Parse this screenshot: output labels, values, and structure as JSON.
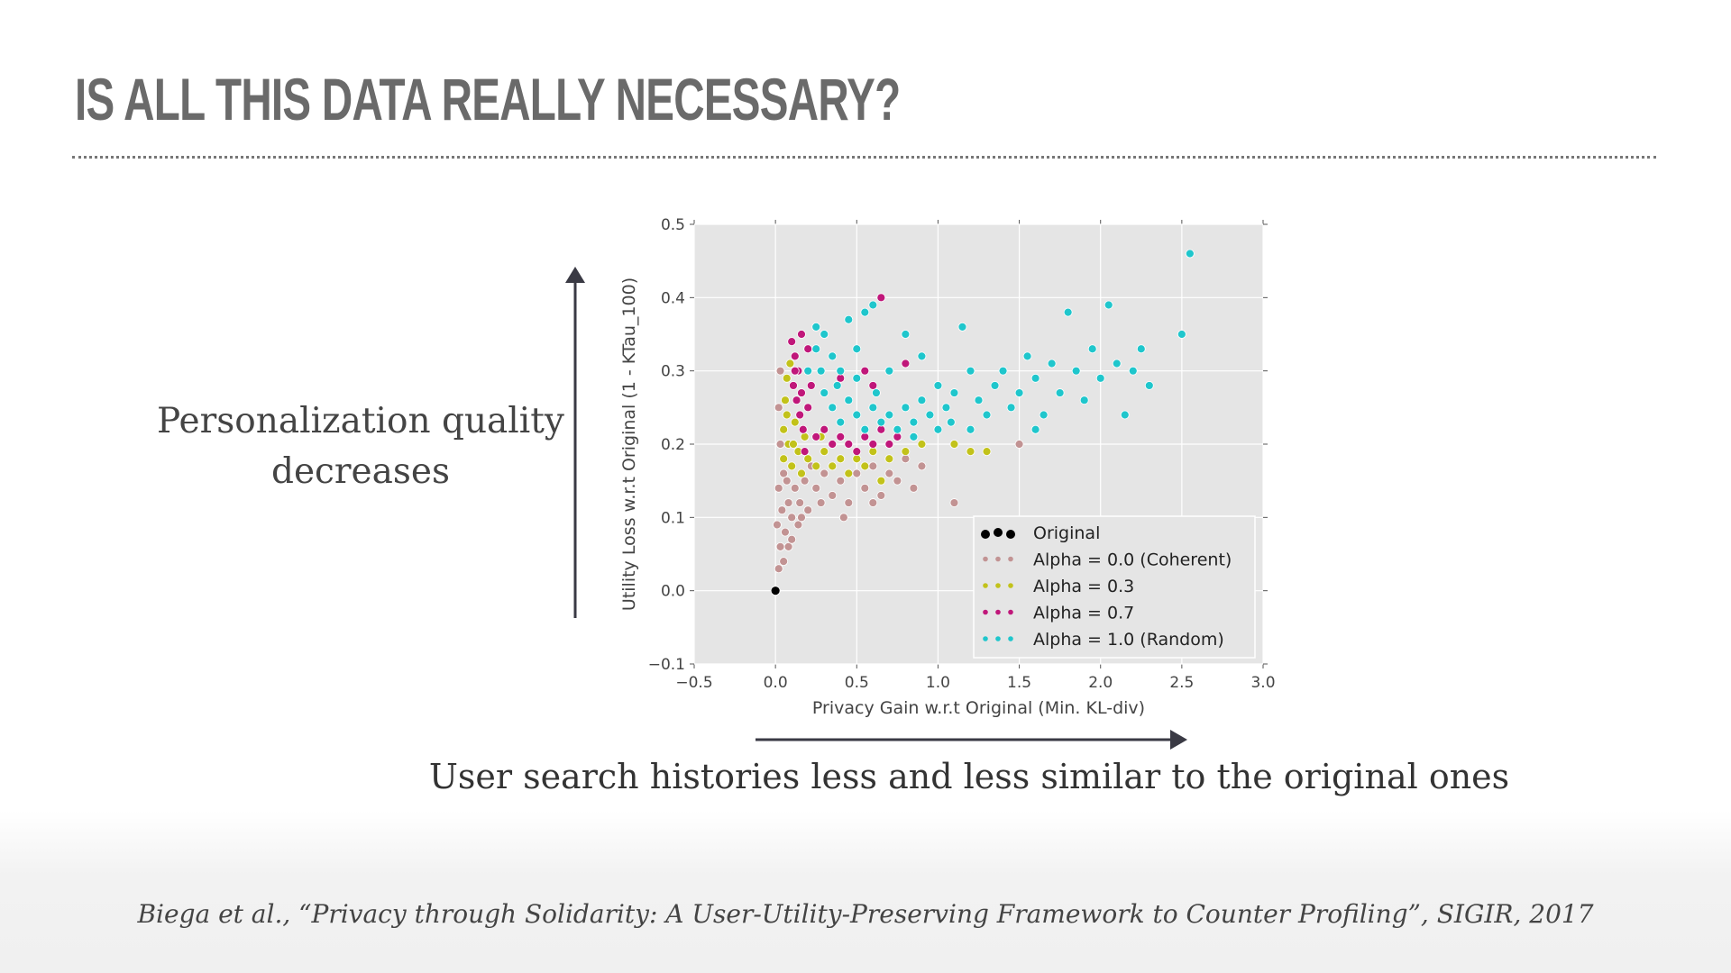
{
  "slide": {
    "title": "IS ALL THIS DATA REALLY NECESSARY?",
    "side_text_line1": "Personalization quality",
    "side_text_line2": "decreases",
    "bottom_text": "User search histories less and less similar to the original ones",
    "citation": "Biega et al., “Privacy through Solidarity: A User-Utility-Preserving Framework to Counter Profiling”, SIGIR, 2017"
  },
  "chart_data": {
    "type": "scatter",
    "title": "",
    "xlabel": "Privacy Gain w.r.t Original (Min. KL-div)",
    "ylabel": "Utility Loss w.r.t Original (1 - KTau_100)",
    "xlim": [
      -0.5,
      3.0
    ],
    "ylim": [
      -0.1,
      0.5
    ],
    "xticks": [
      "−0.5",
      "0.0",
      "0.5",
      "1.0",
      "1.5",
      "2.0",
      "2.5",
      "3.0"
    ],
    "yticks": [
      "−0.1",
      "0.0",
      "0.1",
      "0.2",
      "0.3",
      "0.4",
      "0.5"
    ],
    "grid": true,
    "legend_position": "bottom-right",
    "series": [
      {
        "name": "Alpha = 0.0 (Coherent)",
        "color": "#c29393",
        "points": [
          [
            0.02,
            0.03
          ],
          [
            0.03,
            0.06
          ],
          [
            0.01,
            0.09
          ],
          [
            0.04,
            0.11
          ],
          [
            0.06,
            0.08
          ],
          [
            0.08,
            0.12
          ],
          [
            0.02,
            0.14
          ],
          [
            0.05,
            0.16
          ],
          [
            0.1,
            0.1
          ],
          [
            0.12,
            0.14
          ],
          [
            0.15,
            0.12
          ],
          [
            0.18,
            0.15
          ],
          [
            0.2,
            0.11
          ],
          [
            0.25,
            0.14
          ],
          [
            0.3,
            0.16
          ],
          [
            0.35,
            0.13
          ],
          [
            0.4,
            0.15
          ],
          [
            0.45,
            0.12
          ],
          [
            0.5,
            0.16
          ],
          [
            0.55,
            0.14
          ],
          [
            0.6,
            0.17
          ],
          [
            0.65,
            0.13
          ],
          [
            0.7,
            0.16
          ],
          [
            0.75,
            0.15
          ],
          [
            0.8,
            0.18
          ],
          [
            0.9,
            0.17
          ],
          [
            1.1,
            0.12
          ],
          [
            1.5,
            0.2
          ],
          [
            0.03,
            0.2
          ],
          [
            0.02,
            0.25
          ],
          [
            0.03,
            0.3
          ],
          [
            0.08,
            0.06
          ],
          [
            0.14,
            0.09
          ],
          [
            0.22,
            0.17
          ],
          [
            0.28,
            0.12
          ],
          [
            0.42,
            0.1
          ],
          [
            0.6,
            0.12
          ],
          [
            0.85,
            0.14
          ],
          [
            0.05,
            0.04
          ],
          [
            0.1,
            0.07
          ],
          [
            0.07,
            0.15
          ],
          [
            0.16,
            0.1
          ]
        ]
      },
      {
        "name": "Alpha = 0.3",
        "color": "#c2c21a",
        "points": [
          [
            0.05,
            0.18
          ],
          [
            0.05,
            0.22
          ],
          [
            0.06,
            0.26
          ],
          [
            0.07,
            0.29
          ],
          [
            0.08,
            0.2
          ],
          [
            0.1,
            0.17
          ],
          [
            0.12,
            0.23
          ],
          [
            0.14,
            0.19
          ],
          [
            0.16,
            0.16
          ],
          [
            0.2,
            0.18
          ],
          [
            0.25,
            0.17
          ],
          [
            0.3,
            0.19
          ],
          [
            0.35,
            0.17
          ],
          [
            0.4,
            0.18
          ],
          [
            0.45,
            0.16
          ],
          [
            0.5,
            0.18
          ],
          [
            0.55,
            0.17
          ],
          [
            0.6,
            0.19
          ],
          [
            0.7,
            0.18
          ],
          [
            0.8,
            0.19
          ],
          [
            0.9,
            0.2
          ],
          [
            1.1,
            0.2
          ],
          [
            1.3,
            0.19
          ],
          [
            1.2,
            0.19
          ],
          [
            0.65,
            0.15
          ],
          [
            0.09,
            0.31
          ],
          [
            0.18,
            0.21
          ],
          [
            0.28,
            0.21
          ],
          [
            0.07,
            0.24
          ],
          [
            0.11,
            0.2
          ]
        ]
      },
      {
        "name": "Alpha = 0.7",
        "color": "#c0177a",
        "points": [
          [
            0.1,
            0.34
          ],
          [
            0.12,
            0.32
          ],
          [
            0.14,
            0.3
          ],
          [
            0.11,
            0.28
          ],
          [
            0.13,
            0.26
          ],
          [
            0.15,
            0.24
          ],
          [
            0.17,
            0.22
          ],
          [
            0.2,
            0.33
          ],
          [
            0.22,
            0.28
          ],
          [
            0.2,
            0.25
          ],
          [
            0.25,
            0.21
          ],
          [
            0.3,
            0.22
          ],
          [
            0.35,
            0.2
          ],
          [
            0.4,
            0.21
          ],
          [
            0.45,
            0.2
          ],
          [
            0.5,
            0.19
          ],
          [
            0.55,
            0.21
          ],
          [
            0.6,
            0.2
          ],
          [
            0.65,
            0.22
          ],
          [
            0.7,
            0.2
          ],
          [
            0.75,
            0.21
          ],
          [
            0.6,
            0.28
          ],
          [
            0.65,
            0.4
          ],
          [
            0.55,
            0.3
          ],
          [
            0.8,
            0.31
          ],
          [
            0.16,
            0.35
          ],
          [
            0.18,
            0.19
          ],
          [
            0.4,
            0.29
          ],
          [
            0.12,
            0.3
          ],
          [
            0.16,
            0.27
          ]
        ]
      },
      {
        "name": "Alpha = 1.0 (Random)",
        "color": "#1fc6cc",
        "points": [
          [
            0.2,
            0.3
          ],
          [
            0.25,
            0.33
          ],
          [
            0.3,
            0.35
          ],
          [
            0.35,
            0.32
          ],
          [
            0.4,
            0.3
          ],
          [
            0.45,
            0.37
          ],
          [
            0.5,
            0.33
          ],
          [
            0.55,
            0.38
          ],
          [
            0.6,
            0.39
          ],
          [
            0.3,
            0.27
          ],
          [
            0.35,
            0.25
          ],
          [
            0.4,
            0.23
          ],
          [
            0.45,
            0.26
          ],
          [
            0.5,
            0.24
          ],
          [
            0.55,
            0.22
          ],
          [
            0.6,
            0.25
          ],
          [
            0.65,
            0.23
          ],
          [
            0.7,
            0.24
          ],
          [
            0.75,
            0.22
          ],
          [
            0.8,
            0.25
          ],
          [
            0.85,
            0.23
          ],
          [
            0.9,
            0.26
          ],
          [
            0.95,
            0.24
          ],
          [
            1.0,
            0.22
          ],
          [
            1.05,
            0.25
          ],
          [
            1.1,
            0.27
          ],
          [
            1.15,
            0.36
          ],
          [
            1.2,
            0.3
          ],
          [
            1.25,
            0.26
          ],
          [
            1.3,
            0.24
          ],
          [
            1.35,
            0.28
          ],
          [
            1.4,
            0.3
          ],
          [
            1.45,
            0.25
          ],
          [
            1.5,
            0.27
          ],
          [
            1.55,
            0.32
          ],
          [
            1.6,
            0.29
          ],
          [
            1.65,
            0.24
          ],
          [
            1.7,
            0.31
          ],
          [
            1.75,
            0.27
          ],
          [
            1.8,
            0.38
          ],
          [
            1.85,
            0.3
          ],
          [
            1.9,
            0.26
          ],
          [
            1.95,
            0.33
          ],
          [
            2.0,
            0.29
          ],
          [
            2.05,
            0.39
          ],
          [
            2.1,
            0.31
          ],
          [
            2.15,
            0.24
          ],
          [
            2.2,
            0.3
          ],
          [
            2.25,
            0.33
          ],
          [
            2.3,
            0.28
          ],
          [
            2.5,
            0.35
          ],
          [
            2.55,
            0.46
          ],
          [
            0.7,
            0.3
          ],
          [
            0.9,
            0.32
          ],
          [
            1.0,
            0.28
          ],
          [
            0.25,
            0.36
          ],
          [
            0.5,
            0.29
          ],
          [
            1.2,
            0.22
          ],
          [
            0.8,
            0.35
          ],
          [
            1.6,
            0.22
          ],
          [
            0.28,
            0.3
          ],
          [
            0.38,
            0.28
          ],
          [
            0.62,
            0.27
          ],
          [
            0.85,
            0.21
          ],
          [
            1.08,
            0.23
          ]
        ]
      },
      {
        "name": "Original",
        "color": "#000000",
        "points": [
          [
            0.0,
            0.0
          ]
        ]
      }
    ],
    "legend_order": [
      "Original",
      "Alpha = 0.0 (Coherent)",
      "Alpha = 0.3",
      "Alpha = 0.7",
      "Alpha = 1.0 (Random)"
    ]
  }
}
